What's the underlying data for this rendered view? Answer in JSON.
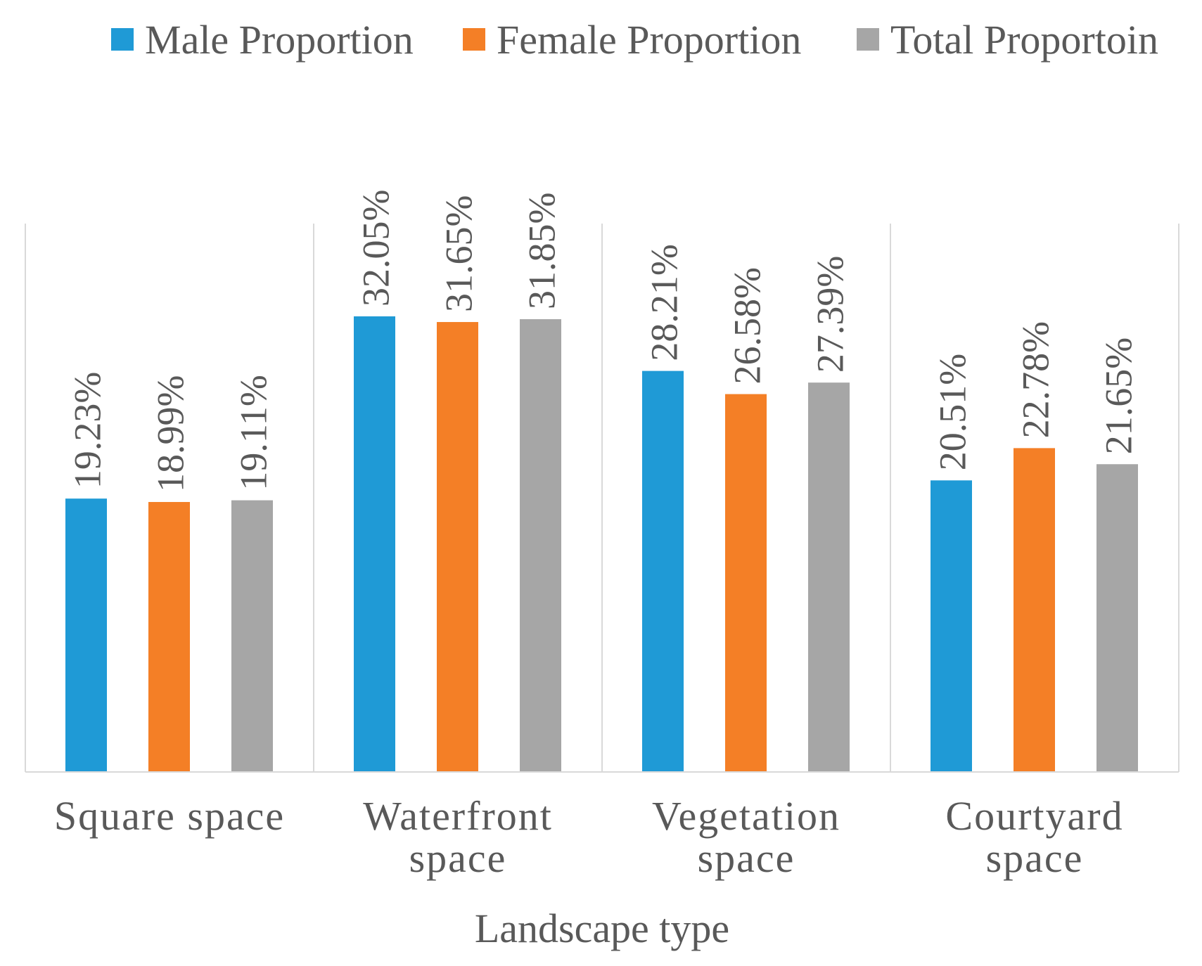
{
  "chart_data": {
    "type": "bar",
    "title": "",
    "xlabel": "Landscape type",
    "ylabel": "",
    "categories": [
      [
        "Square space"
      ],
      [
        "Waterfront",
        "space"
      ],
      [
        "Vegetation",
        "space"
      ],
      [
        "Courtyard",
        "space"
      ]
    ],
    "series": [
      {
        "name": "Male Proportion",
        "color": "#1f9ad6",
        "values": [
          19.23,
          32.05,
          28.21,
          20.51
        ],
        "labels": [
          "19.23%",
          "32.05%",
          "28.21%",
          "20.51%"
        ]
      },
      {
        "name": "Female Proportion",
        "color": "#f47f26",
        "values": [
          18.99,
          31.65,
          26.58,
          22.78
        ],
        "labels": [
          "18.99%",
          "31.65%",
          "26.58%",
          "22.78%"
        ]
      },
      {
        "name": "Total Proportoin",
        "color": "#a6a6a6",
        "values": [
          19.11,
          31.85,
          27.39,
          21.65
        ],
        "labels": [
          "19.11%",
          "31.85%",
          "27.39%",
          "21.65%"
        ]
      }
    ],
    "ylim": [
      0,
      35
    ],
    "grid": false,
    "legend_position": "top",
    "colors": {
      "axis": "#d9d9d9",
      "text": "#595959"
    }
  }
}
